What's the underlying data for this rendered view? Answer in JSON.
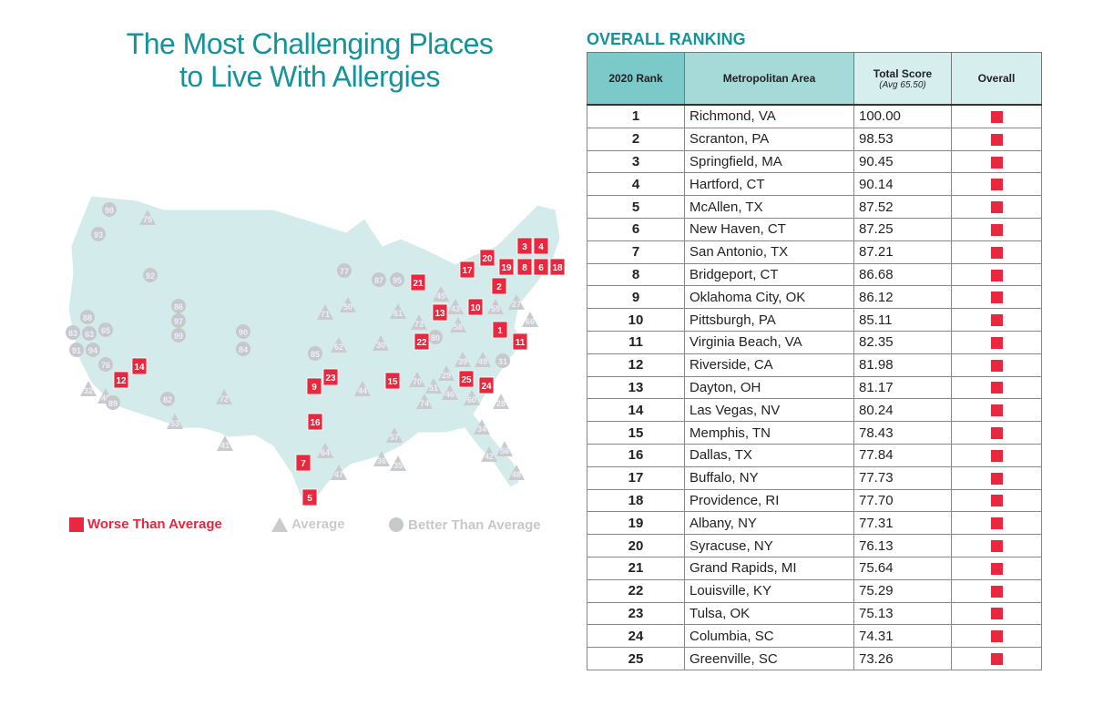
{
  "title_line1": "The Most Challenging Places",
  "title_line2": "to Live With Allergies",
  "section_title": "OVERALL RANKING",
  "colors": {
    "worse": "#e8283f",
    "average": "#c9cccc",
    "better": "#c6c9c9",
    "teal": "#14939a",
    "map": "#d3ebea"
  },
  "legend": {
    "worse": "Worse Than Average",
    "average": "Average",
    "better": "Better Than Average"
  },
  "chart_data": {
    "type": "table",
    "columns": [
      "2020 Rank",
      "Metropolitan Area",
      "Total Score",
      "Overall"
    ],
    "score_note": "(Avg 65.50)",
    "rows": [
      {
        "rank": "1",
        "area": "Richmond, VA",
        "score": "100.00"
      },
      {
        "rank": "2",
        "area": "Scranton, PA",
        "score": "98.53"
      },
      {
        "rank": "3",
        "area": "Springfield, MA",
        "score": "90.45"
      },
      {
        "rank": "4",
        "area": "Hartford, CT",
        "score": "90.14"
      },
      {
        "rank": "5",
        "area": "McAllen, TX",
        "score": "87.52"
      },
      {
        "rank": "6",
        "area": "New Haven, CT",
        "score": "87.25"
      },
      {
        "rank": "7",
        "area": "San Antonio, TX",
        "score": "87.21"
      },
      {
        "rank": "8",
        "area": "Bridgeport, CT",
        "score": "86.68"
      },
      {
        "rank": "9",
        "area": "Oklahoma City, OK",
        "score": "86.12"
      },
      {
        "rank": "10",
        "area": "Pittsburgh, PA",
        "score": "85.11"
      },
      {
        "rank": "11",
        "area": "Virginia Beach, VA",
        "score": "82.35"
      },
      {
        "rank": "12",
        "area": "Riverside, CA",
        "score": "81.98"
      },
      {
        "rank": "13",
        "area": "Dayton, OH",
        "score": "81.17"
      },
      {
        "rank": "14",
        "area": "Las Vegas, NV",
        "score": "80.24"
      },
      {
        "rank": "15",
        "area": "Memphis, TN",
        "score": "78.43"
      },
      {
        "rank": "16",
        "area": "Dallas, TX",
        "score": "77.84"
      },
      {
        "rank": "17",
        "area": "Buffalo, NY",
        "score": "77.73"
      },
      {
        "rank": "18",
        "area": "Providence, RI",
        "score": "77.70"
      },
      {
        "rank": "19",
        "area": "Albany, NY",
        "score": "77.31"
      },
      {
        "rank": "20",
        "area": "Syracuse, NY",
        "score": "76.13"
      },
      {
        "rank": "21",
        "area": "Grand Rapids, MI",
        "score": "75.64"
      },
      {
        "rank": "22",
        "area": "Louisville, KY",
        "score": "75.29"
      },
      {
        "rank": "23",
        "area": "Tulsa, OK",
        "score": "75.13"
      },
      {
        "rank": "24",
        "area": "Columbia, SC",
        "score": "74.31"
      },
      {
        "rank": "25",
        "area": "Greenville, SC",
        "score": "73.26"
      }
    ],
    "map_markers": {
      "worse": [
        "1",
        "2",
        "3",
        "4",
        "6",
        "8",
        "18",
        "19",
        "20",
        "17",
        "21",
        "10",
        "13",
        "22",
        "11",
        "25",
        "24",
        "15",
        "23",
        "9",
        "16",
        "7",
        "5",
        "14",
        "12"
      ],
      "better": [
        "98",
        "93",
        "92",
        "86",
        "97",
        "99",
        "88",
        "83",
        "63",
        "65",
        "91",
        "94",
        "76",
        "89",
        "82",
        "90",
        "84",
        "85",
        "77",
        "87",
        "95",
        "80",
        "31"
      ],
      "average": [
        "75",
        "71",
        "50",
        "62",
        "30",
        "61",
        "73",
        "70",
        "51",
        "29",
        "46",
        "74",
        "44",
        "72",
        "41",
        "53",
        "57",
        "36",
        "35",
        "64",
        "47",
        "34",
        "48",
        "42",
        "40",
        "32",
        "49",
        "43",
        "27",
        "55",
        "66",
        "60",
        "28",
        "39",
        "56",
        "45",
        "58"
      ]
    }
  }
}
